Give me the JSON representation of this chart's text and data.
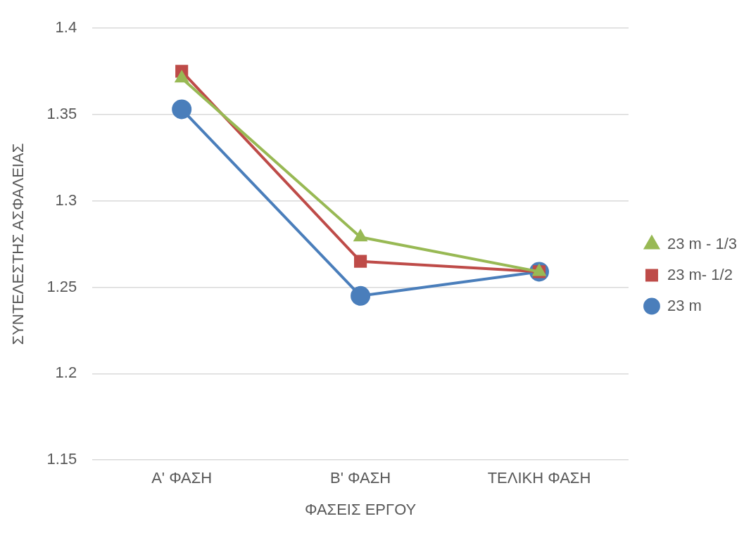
{
  "chart_data": {
    "type": "line",
    "xlabel": "ΦΑΣΕΙΣ ΕΡΓΟΥ",
    "ylabel": "ΣΥΝΤΕΛΕΣΤΗΣ ΑΣΦΑΛΕΙΑΣ",
    "categories": [
      "Α' ΦΑΣΗ",
      "Β' ΦΑΣΗ",
      "ΤΕΛΙΚΗ ΦΑΣΗ"
    ],
    "series": [
      {
        "name": "23 m",
        "color": "#4a7ebb",
        "marker": "circle",
        "values": [
          1.353,
          1.245,
          1.259
        ]
      },
      {
        "name": "23 m- 1/2",
        "color": "#be4b48",
        "marker": "square",
        "values": [
          1.375,
          1.265,
          1.259
        ]
      },
      {
        "name": "23 m - 1/3",
        "color": "#98b954",
        "marker": "triangle",
        "values": [
          1.371,
          1.279,
          1.259
        ]
      }
    ],
    "ylim": [
      1.15,
      1.4
    ],
    "yticks": [
      1.15,
      1.2,
      1.25,
      1.3,
      1.35,
      1.4
    ],
    "grid": "y",
    "legend": "right",
    "line_style": "solid"
  }
}
